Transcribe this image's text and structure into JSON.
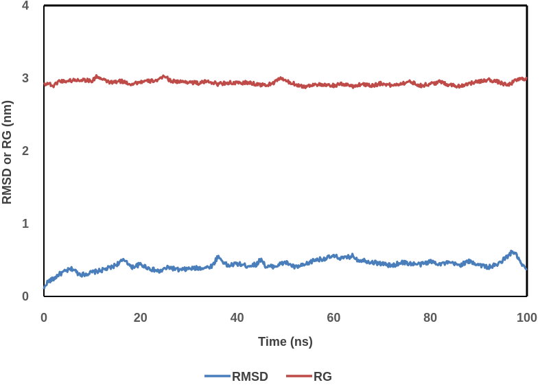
{
  "chart_data": {
    "type": "line",
    "title": "",
    "xlabel": "Time (ns)",
    "ylabel": "RMSD or RG (nm)",
    "xlim": [
      0,
      100
    ],
    "ylim": [
      0,
      4
    ],
    "xticks": [
      0,
      20,
      40,
      60,
      80,
      100
    ],
    "yticks": [
      0,
      1,
      2,
      3,
      4
    ],
    "grid": false,
    "legend_position": "bottom",
    "series": [
      {
        "name": "RMSD",
        "color": "#4a7ebb",
        "x": [
          0,
          0.5,
          1,
          2,
          3,
          4,
          5,
          6,
          7,
          8,
          10,
          12,
          14,
          16,
          17,
          18,
          20,
          22,
          24,
          25,
          26,
          28,
          30,
          32,
          34,
          35,
          36,
          38,
          40,
          42,
          44,
          45,
          46,
          48,
          50,
          52,
          54,
          56,
          58,
          60,
          62,
          64,
          65,
          66,
          68,
          70,
          72,
          74,
          76,
          78,
          80,
          82,
          84,
          86,
          88,
          90,
          92,
          94,
          95,
          96,
          97,
          98,
          99,
          100
        ],
        "values": [
          0.1,
          0.18,
          0.21,
          0.24,
          0.3,
          0.33,
          0.36,
          0.38,
          0.32,
          0.3,
          0.33,
          0.36,
          0.4,
          0.48,
          0.5,
          0.4,
          0.44,
          0.38,
          0.34,
          0.38,
          0.4,
          0.36,
          0.38,
          0.39,
          0.4,
          0.43,
          0.55,
          0.42,
          0.45,
          0.42,
          0.44,
          0.52,
          0.4,
          0.42,
          0.47,
          0.4,
          0.43,
          0.5,
          0.52,
          0.55,
          0.52,
          0.56,
          0.5,
          0.5,
          0.47,
          0.45,
          0.42,
          0.47,
          0.45,
          0.44,
          0.48,
          0.45,
          0.46,
          0.43,
          0.48,
          0.44,
          0.4,
          0.44,
          0.5,
          0.55,
          0.62,
          0.55,
          0.42,
          0.38
        ]
      },
      {
        "name": "RG",
        "color": "#be4b48",
        "x": [
          0,
          1,
          2,
          3,
          4,
          6,
          8,
          10,
          11,
          12,
          14,
          16,
          18,
          20,
          22,
          24,
          25,
          26,
          28,
          30,
          32,
          34,
          36,
          38,
          40,
          42,
          44,
          46,
          48,
          49,
          50,
          52,
          54,
          56,
          58,
          60,
          62,
          64,
          66,
          68,
          70,
          72,
          74,
          76,
          78,
          80,
          82,
          84,
          86,
          88,
          90,
          92,
          94,
          96,
          98,
          100
        ],
        "values": [
          2.92,
          2.93,
          2.89,
          2.96,
          2.96,
          2.97,
          2.98,
          2.96,
          3.03,
          2.98,
          2.94,
          2.96,
          2.92,
          2.95,
          2.96,
          2.98,
          3.04,
          2.97,
          2.95,
          2.95,
          2.93,
          2.96,
          2.92,
          2.94,
          2.93,
          2.94,
          2.92,
          2.9,
          2.95,
          3.01,
          2.96,
          2.92,
          2.88,
          2.92,
          2.9,
          2.9,
          2.92,
          2.89,
          2.92,
          2.9,
          2.93,
          2.9,
          2.93,
          2.95,
          2.9,
          2.92,
          2.95,
          2.91,
          2.89,
          2.93,
          2.95,
          2.98,
          2.95,
          2.9,
          2.98,
          3.0
        ]
      }
    ]
  }
}
